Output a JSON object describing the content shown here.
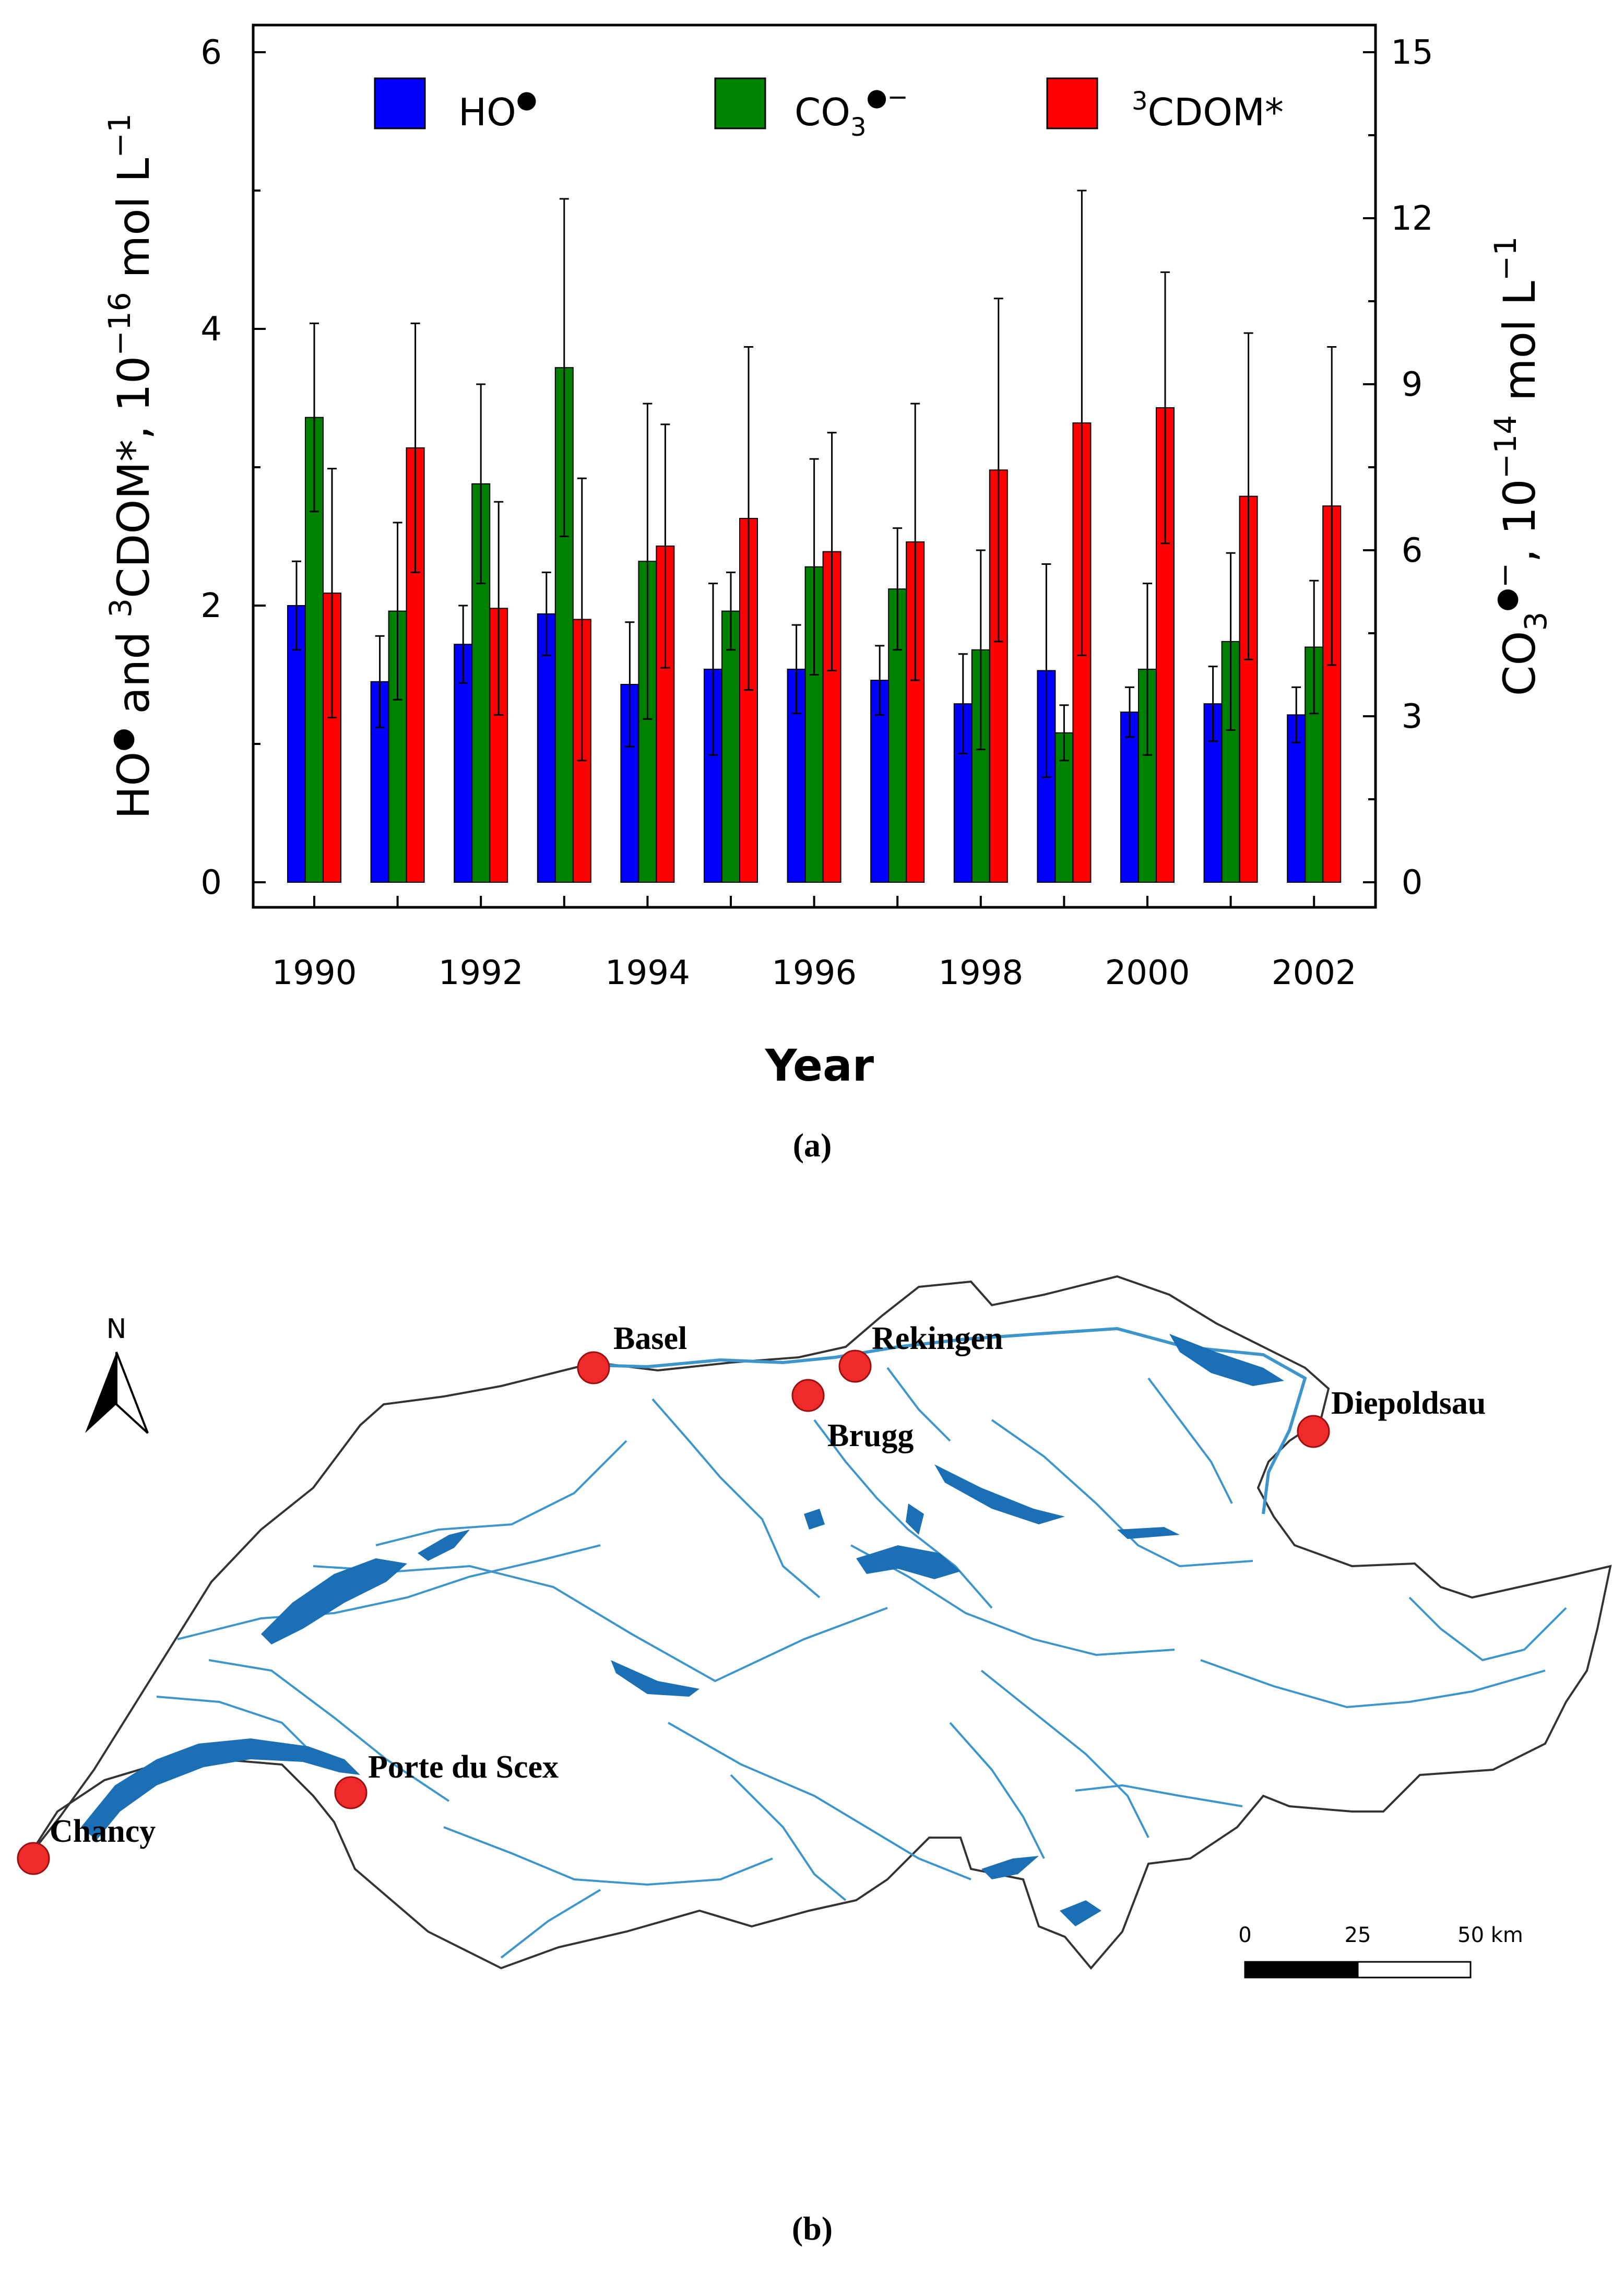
{
  "chart_data": {
    "type": "bar",
    "title": "",
    "xlabel": "Year",
    "ylabel_left": "HO• and ³CDOM*, 10⁻¹⁶ mol L⁻¹",
    "ylabel_right": "CO₃•⁻, 10⁻¹⁴ mol L⁻¹",
    "left_ylim": [
      0,
      6
    ],
    "right_ylim": [
      0,
      15
    ],
    "left_ticks": [
      "0",
      "2",
      "4",
      "6"
    ],
    "right_ticks": [
      "0",
      "3",
      "6",
      "9",
      "12",
      "15"
    ],
    "categories": [
      "1990",
      "1991",
      "1992",
      "1993",
      "1994",
      "1995",
      "1996",
      "1997",
      "1998",
      "1999",
      "2000",
      "2001",
      "2002"
    ],
    "x_tick_labels": [
      "1990",
      "1992",
      "1994",
      "1996",
      "1998",
      "2000",
      "2002"
    ],
    "series": [
      {
        "name": "HO•",
        "axis": "left",
        "color": "#0000ff",
        "values": [
          2.0,
          1.45,
          1.72,
          1.94,
          1.43,
          1.54,
          1.54,
          1.46,
          1.29,
          1.53,
          1.23,
          1.29,
          1.21
        ],
        "err": [
          0.32,
          0.33,
          0.28,
          0.3,
          0.45,
          0.62,
          0.32,
          0.25,
          0.36,
          0.77,
          0.18,
          0.27,
          0.2
        ]
      },
      {
        "name": "CO₃•⁻",
        "axis": "right",
        "color": "#008000",
        "values": [
          8.4,
          4.9,
          7.2,
          9.3,
          5.8,
          4.9,
          5.7,
          5.3,
          4.2,
          2.7,
          3.85,
          4.35,
          4.25
        ],
        "err": [
          1.7,
          1.6,
          1.8,
          3.05,
          2.85,
          0.7,
          1.95,
          1.1,
          1.8,
          0.5,
          1.55,
          1.6,
          1.2
        ]
      },
      {
        "name": "³CDOM*",
        "axis": "left",
        "color": "#ff0000",
        "values": [
          2.09,
          3.14,
          1.98,
          1.9,
          2.43,
          2.63,
          2.39,
          2.46,
          2.98,
          3.32,
          3.43,
          2.79,
          2.72
        ],
        "err": [
          0.9,
          0.9,
          0.77,
          1.02,
          0.88,
          1.24,
          0.86,
          1.0,
          1.24,
          1.68,
          0.98,
          1.18,
          1.15
        ]
      }
    ],
    "legend_position": "top-inside",
    "grid": false,
    "caption": "(a)"
  },
  "map": {
    "north_label": "N",
    "stations": [
      {
        "name": "Basel"
      },
      {
        "name": "Rekingen"
      },
      {
        "name": "Brugg"
      },
      {
        "name": "Diepoldsau"
      },
      {
        "name": "Porte du Scex"
      },
      {
        "name": "Chancy"
      }
    ],
    "scale_bar": {
      "labels": [
        "0",
        "25",
        "50 km"
      ]
    },
    "caption": "(b)",
    "marker_color": "#ee2a2a",
    "river_color": "#3c96cc",
    "lake_color": "#1a6fb5"
  },
  "legend_text": {
    "ho_main": "HO",
    "co3_main": "CO",
    "co3_sub": "3",
    "cdom_sup": "3",
    "cdom_main": "CDOM*"
  }
}
